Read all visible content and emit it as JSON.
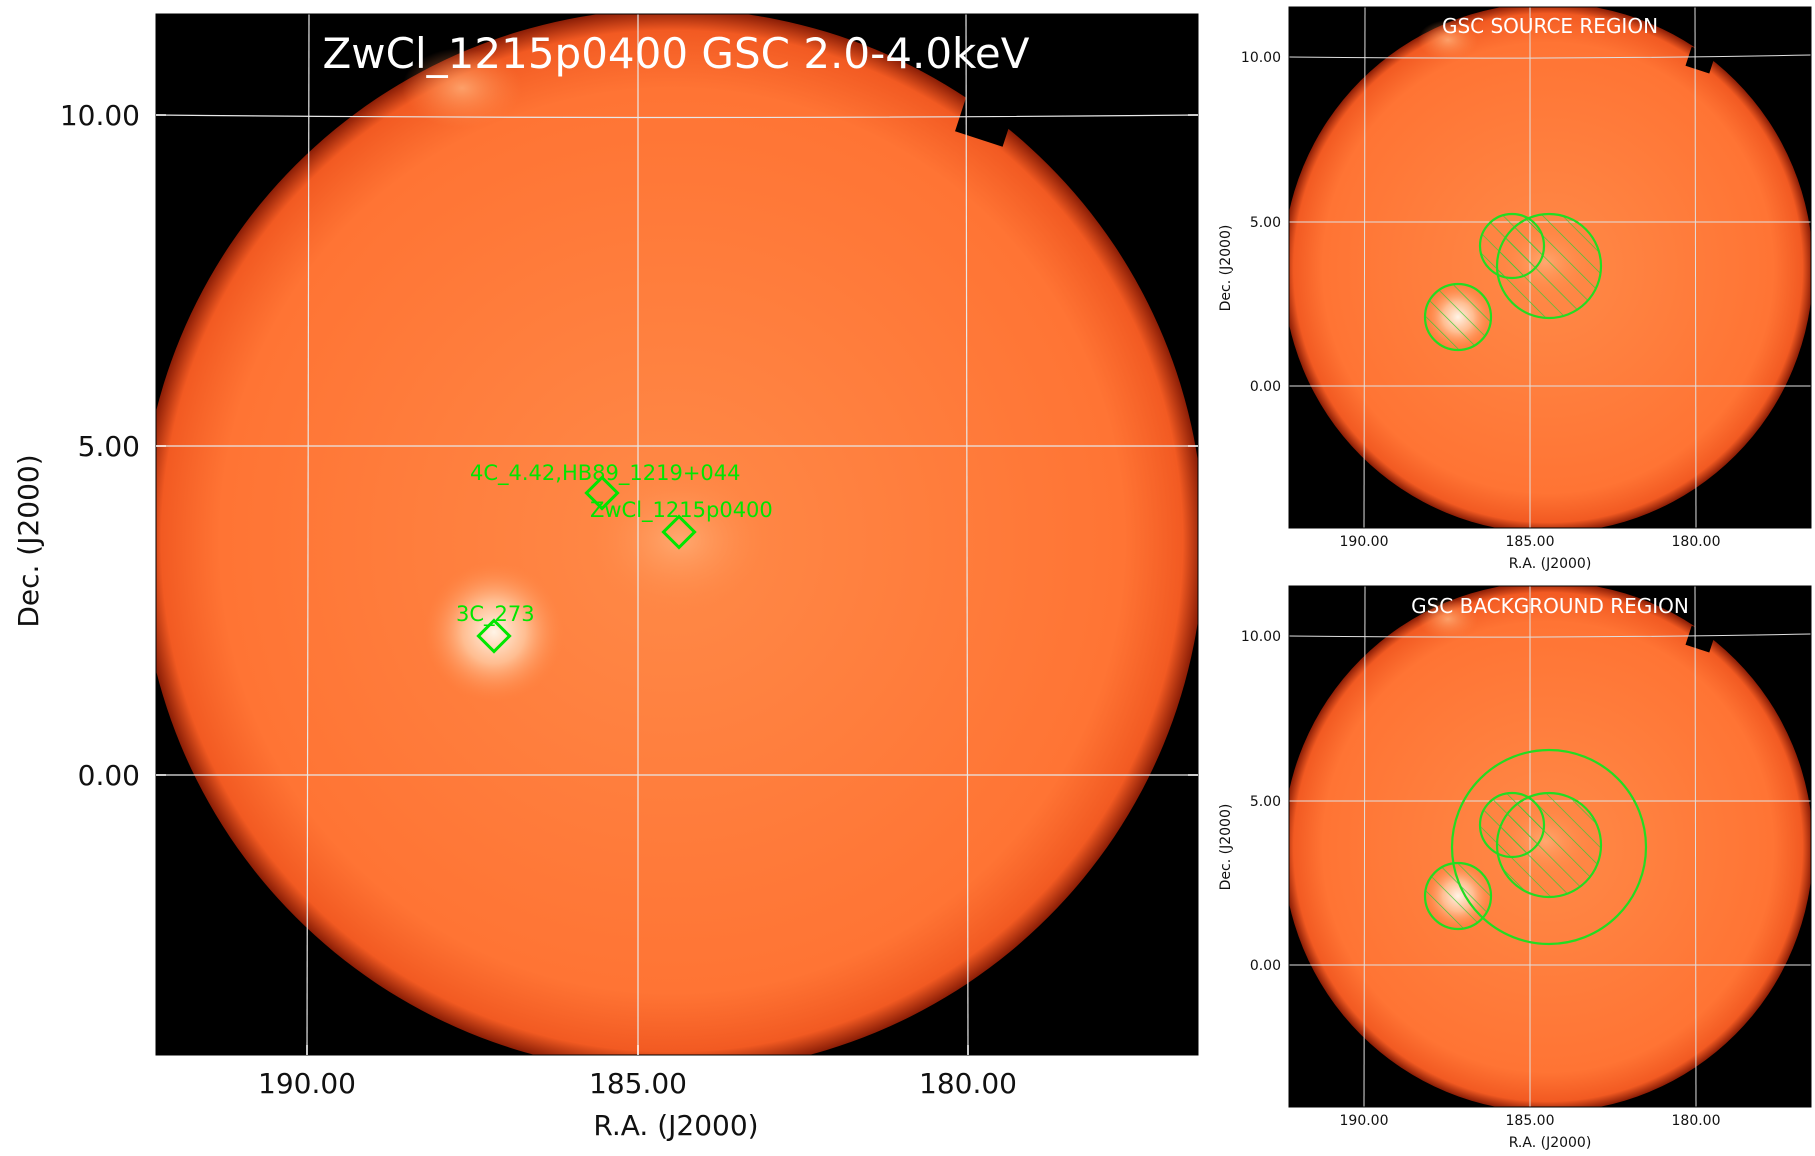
{
  "main_panel": {
    "title": "ZwCl_1215p0400 GSC 2.0-4.0keV",
    "xlabel": "R.A. (J2000)",
    "ylabel": "Dec. (J2000)",
    "x_ticks": [
      "190.00",
      "185.00",
      "180.00"
    ],
    "y_ticks": [
      "10.00",
      "5.00",
      "0.00"
    ],
    "sources": [
      {
        "label": "4C_4.42,HB89_1219+044"
      },
      {
        "label": "ZwCl_1215p0400"
      },
      {
        "label": "3C_273"
      }
    ]
  },
  "source_panel": {
    "title": "GSC SOURCE REGION",
    "xlabel": "R.A. (J2000)",
    "ylabel": "Dec. (J2000)",
    "x_ticks": [
      "190.00",
      "185.00",
      "180.00"
    ],
    "y_ticks": [
      "10.00",
      "5.00",
      "0.00"
    ]
  },
  "background_panel": {
    "title": "GSC BACKGROUND REGION",
    "xlabel": "R.A. (J2000)",
    "ylabel": "Dec. (J2000)",
    "x_ticks": [
      "190.00",
      "185.00",
      "180.00"
    ],
    "y_ticks": [
      "10.00",
      "5.00",
      "0.00"
    ]
  },
  "colors": {
    "field_orange": "#ff7a3a",
    "edge_red": "#e84a1c",
    "region_green": "#22dd22",
    "label_green": "#00e600"
  }
}
